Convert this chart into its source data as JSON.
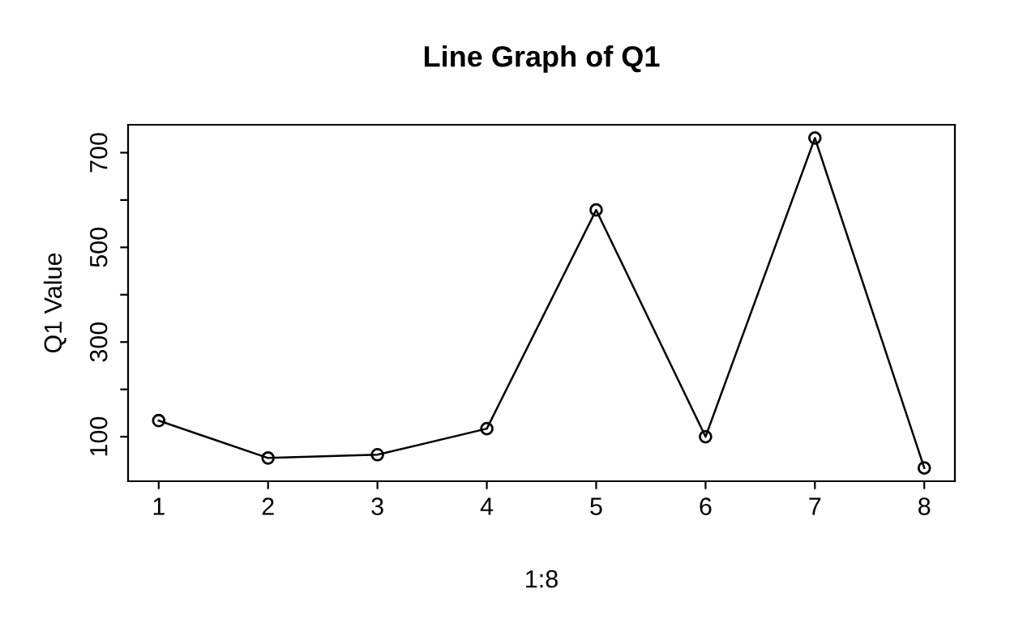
{
  "chart_data": {
    "type": "line",
    "title": "Line Graph of Q1",
    "xlabel": "1:8",
    "ylabel": "Q1 Value",
    "x": [
      1,
      2,
      3,
      4,
      5,
      6,
      7,
      8
    ],
    "series": [
      {
        "color": "#000000",
        "values": [
          134,
          55,
          62,
          117,
          579,
          100,
          731,
          34
        ]
      }
    ],
    "xlim": [
      0.72,
      8.28
    ],
    "xticks": [
      1,
      2,
      3,
      4,
      5,
      6,
      7,
      8
    ],
    "ylim": [
      6,
      759
    ],
    "yticks": [
      100,
      {
        "value": 200,
        "label": null
      },
      300,
      {
        "value": 400,
        "label": null
      },
      500,
      {
        "value": 600,
        "label": null
      },
      700
    ],
    "marker": "circle",
    "line_style": "solid",
    "grid": false,
    "legend": false
  }
}
